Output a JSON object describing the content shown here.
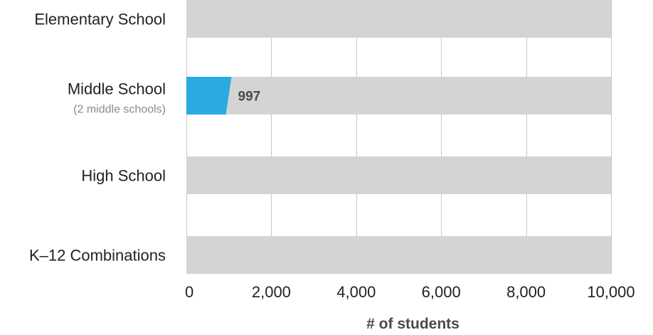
{
  "chart_data": {
    "type": "bar",
    "orientation": "horizontal",
    "categories": [
      {
        "label": "Elementary School",
        "sublabel": ""
      },
      {
        "label": "Middle School",
        "sublabel": "(2 middle schools)"
      },
      {
        "label": "High School",
        "sublabel": ""
      },
      {
        "label": "K–12 Combinations",
        "sublabel": ""
      }
    ],
    "series": [
      {
        "values": [
          null,
          997,
          null,
          null
        ]
      }
    ],
    "data_labels": [
      "",
      "997",
      "",
      ""
    ],
    "xlim": [
      0,
      10000
    ],
    "xticks": [
      {
        "value": 0,
        "label": "0"
      },
      {
        "value": 2000,
        "label": "2,000"
      },
      {
        "value": 4000,
        "label": "4,000"
      },
      {
        "value": 6000,
        "label": "6,000"
      },
      {
        "value": 8000,
        "label": "8,000"
      },
      {
        "value": 10000,
        "label": "10,000"
      }
    ],
    "xlabel": "# of students",
    "ylabel": "",
    "grid": true,
    "legend": "none",
    "colors": {
      "bar": "#29abe2",
      "track": "#d4d4d4",
      "grid": "#c8c8c8",
      "label_text": "#222222",
      "sublabel_text": "#8a8a8a",
      "value_text": "#4a4a4a",
      "axis_text": "#222222"
    }
  }
}
